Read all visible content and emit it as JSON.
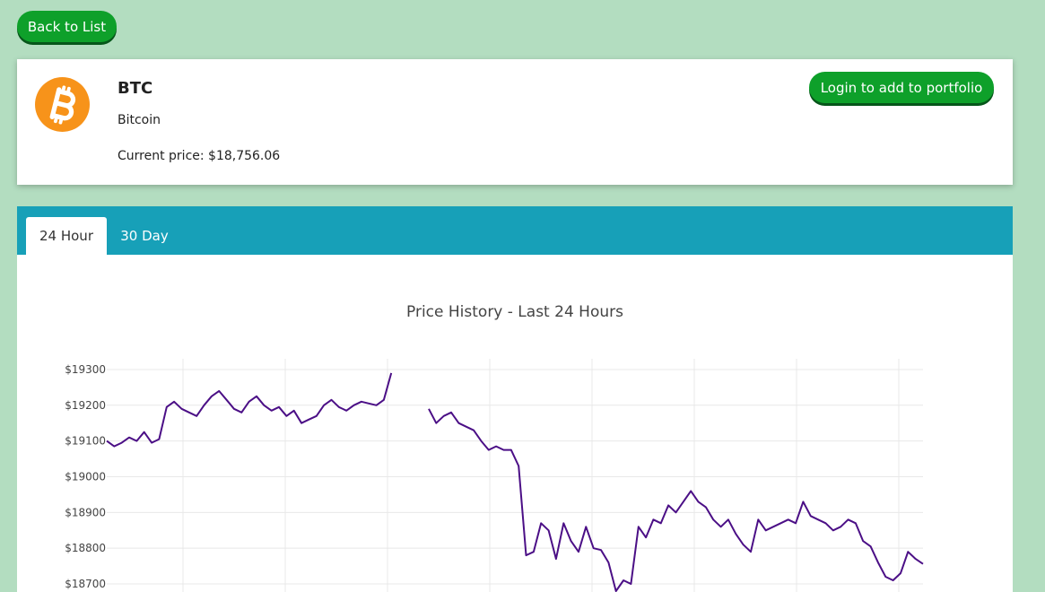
{
  "nav": {
    "back_label": "Back to List"
  },
  "coin": {
    "symbol": "BTC",
    "name": "Bitcoin",
    "price_text": "Current price: $18,756.06",
    "login_label": "Login to add to portfolio",
    "logo_color": "#f7931a"
  },
  "tabs": [
    {
      "label": "24 Hour",
      "active": true
    },
    {
      "label": "30 Day",
      "active": false
    }
  ],
  "colors": {
    "background": "#b3ddc0",
    "button": "#0ea02a",
    "tab_bar": "#17a0b8",
    "line": "#4b0f86"
  },
  "chart_data": {
    "type": "line",
    "title": "Price History - Last 24 Hours",
    "ylim": [
      18690,
      19330
    ],
    "yticks": [
      19300,
      19200,
      19100,
      19000,
      18900,
      18800,
      18700
    ],
    "ytick_labels": [
      "$19300",
      "$19200",
      "$19100",
      "$19000",
      "$18900",
      "$18800",
      "$18700"
    ],
    "grid": true,
    "series": [
      {
        "values": [
          19100,
          19085,
          19095,
          19110,
          19100,
          19125,
          19095,
          19105,
          19195,
          19210,
          19190,
          19180,
          19170,
          19200,
          19225,
          19240,
          19215,
          19190,
          19180,
          19210,
          19225,
          19200,
          19185,
          19195,
          19170,
          19185,
          19150,
          19160,
          19170,
          19200,
          19215,
          19195,
          19185,
          19200,
          19210,
          19205,
          19200,
          19215,
          19290,
          null,
          null,
          null,
          null,
          19190,
          19150,
          19170,
          19180,
          19150,
          19140,
          19130,
          19100,
          19075,
          19085,
          19075,
          19075,
          19030,
          18780,
          18790,
          18870,
          18850,
          18770,
          18870,
          18820,
          18790,
          18860,
          18800,
          18795,
          18760,
          18680,
          18710,
          18700,
          18860,
          18830,
          18880,
          18870,
          18920,
          18900,
          18930,
          18960,
          18930,
          18915,
          18880,
          18860,
          18880,
          18840,
          18810,
          18790,
          18880,
          18850,
          18860,
          18870,
          18880,
          18870,
          18930,
          18890,
          18880,
          18870,
          18850,
          18860,
          18880,
          18870,
          18820,
          18805,
          18760,
          18720,
          18710,
          18730,
          18790,
          18770,
          18756
        ]
      }
    ]
  }
}
